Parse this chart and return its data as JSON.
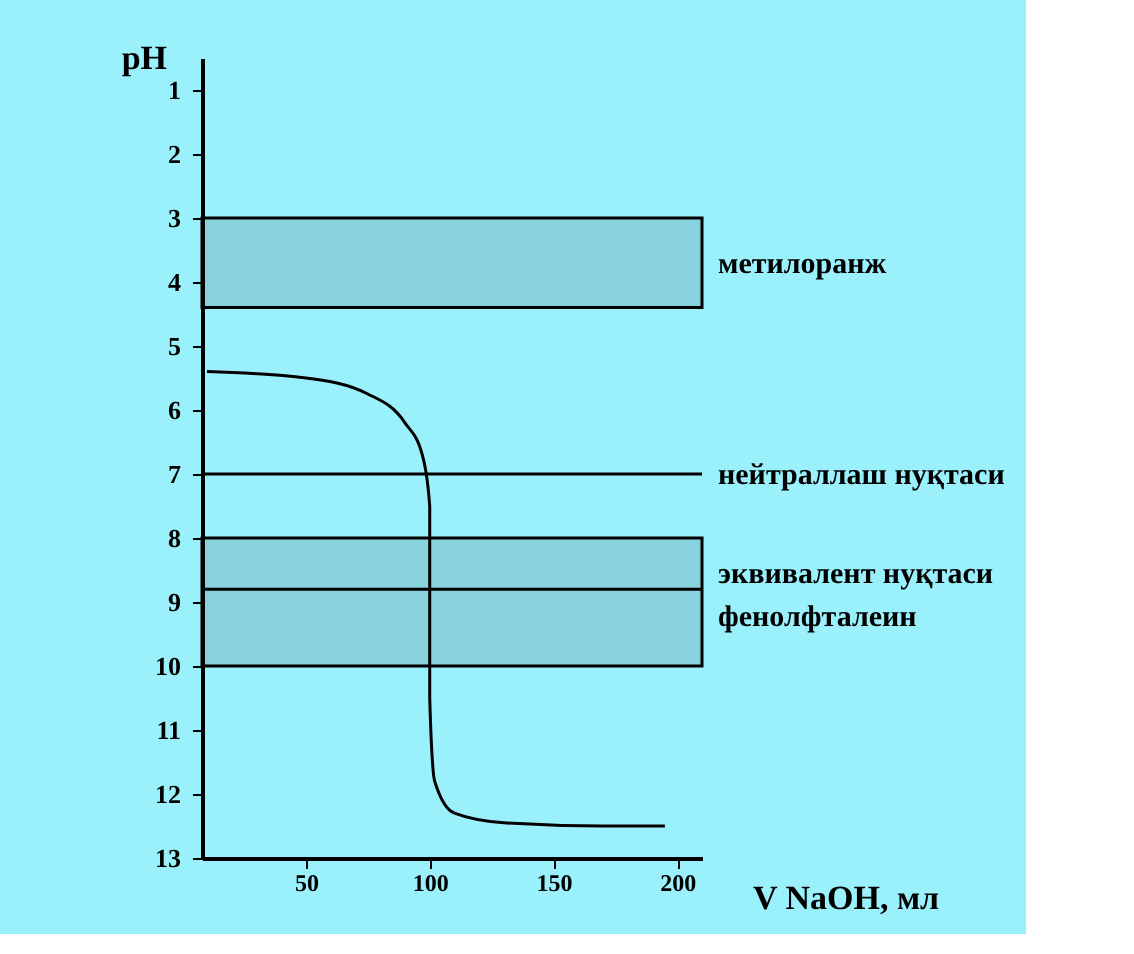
{
  "chart_data": {
    "type": "line",
    "xlabel": "V NaOH, мл",
    "ylabel": "pH",
    "x": [
      10,
      50,
      75,
      90,
      97,
      100,
      100,
      102,
      110,
      130,
      170,
      195
    ],
    "series": [
      {
        "color": "#000000",
        "values": [
          5.4,
          5.5,
          5.75,
          6.2,
          6.7,
          7.5,
          10.5,
          11.8,
          12.3,
          12.45,
          12.5,
          12.5
        ]
      }
    ],
    "xlim": [
      8,
      210
    ],
    "xticks": [
      50,
      100,
      150,
      200
    ],
    "ylim": [
      13,
      0.5
    ],
    "yticks": [
      1,
      2,
      3,
      4,
      5,
      6,
      7,
      8,
      9,
      10,
      11,
      12,
      13
    ],
    "bands": [
      {
        "axis": "y",
        "from": 3,
        "to": 4.4,
        "label": "метилоранж"
      },
      {
        "axis": "y",
        "from": 8,
        "to": 10,
        "label": "фенолфталеин"
      }
    ],
    "ref_lines": [
      {
        "axis": "y",
        "value": 7,
        "label": "нейтраллаш нуқтаси"
      },
      {
        "axis": "y",
        "value": 8.8,
        "label": "эквивалент нуқтаси"
      }
    ],
    "grid": false,
    "legend": false,
    "marker": "none",
    "line_style": "solid"
  }
}
